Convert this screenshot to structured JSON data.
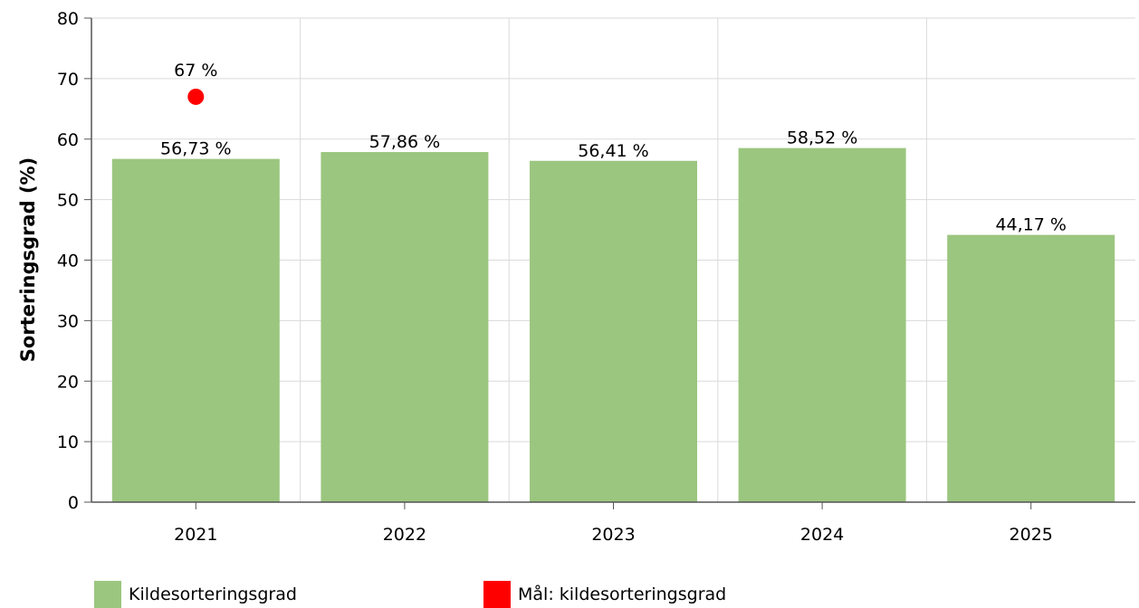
{
  "colors": {
    "bar": "#9BC67F",
    "target": "#FF0000",
    "grid": "#DADADA",
    "axis": "#555555"
  },
  "chart_data": {
    "type": "bar",
    "categories": [
      "2021",
      "2022",
      "2023",
      "2024",
      "2025"
    ],
    "series": [
      {
        "name": "Kildesorteringsgrad",
        "type": "bar",
        "values": [
          56.73,
          57.86,
          56.41,
          58.52,
          44.17
        ],
        "labels": [
          "56,73 %",
          "57,86 %",
          "56,41 %",
          "58,52 %",
          "44,17 %"
        ]
      },
      {
        "name": "Mål: kildesorteringsgrad",
        "type": "scatter",
        "values": [
          67,
          null,
          null,
          null,
          null
        ],
        "labels": [
          "67 %",
          "",
          "",
          "",
          ""
        ]
      }
    ],
    "ylabel": "Sorteringsgrad (%)",
    "ylim": [
      0,
      80
    ],
    "yticks": [
      0,
      10,
      20,
      30,
      40,
      50,
      60,
      70,
      80
    ],
    "grid": true,
    "legend_position": "bottom"
  },
  "legend": {
    "bar_label": "Kildesorteringsgrad",
    "target_label": "Mål: kildesorteringsgrad"
  }
}
